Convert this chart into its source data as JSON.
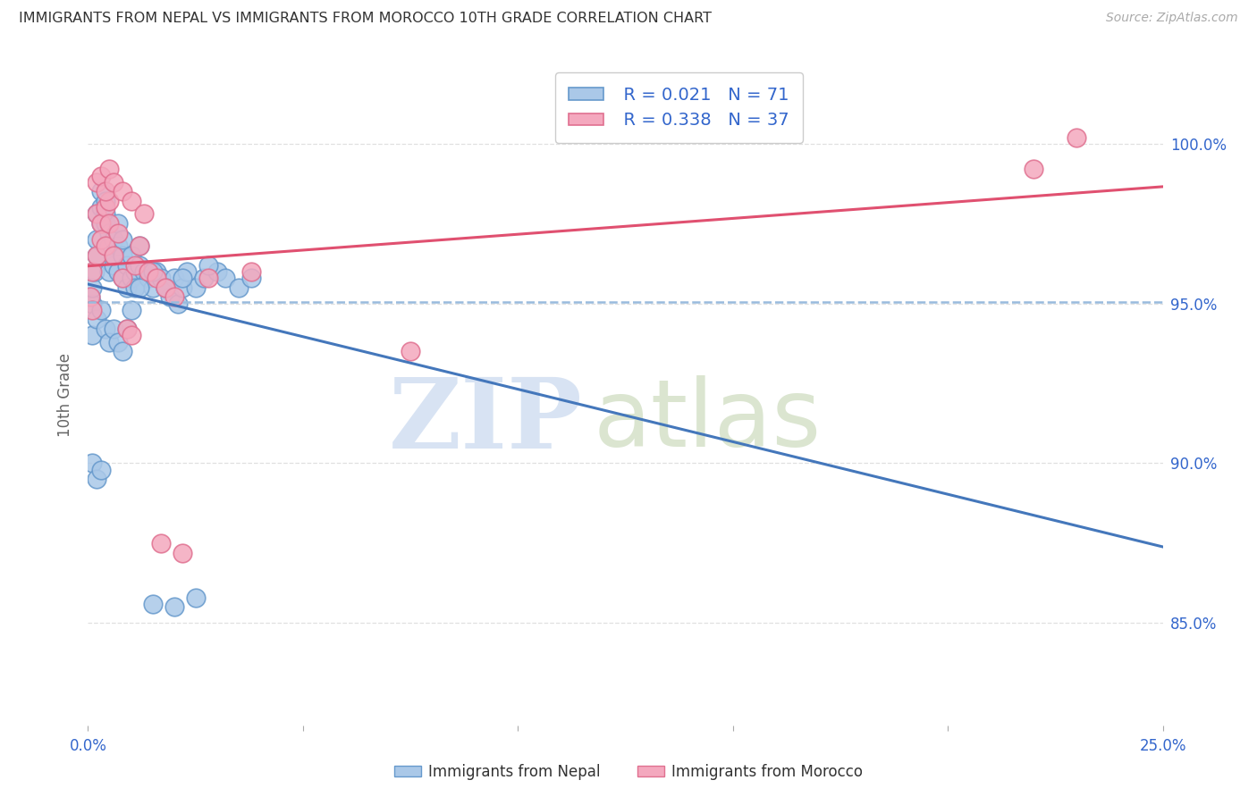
{
  "title": "IMMIGRANTS FROM NEPAL VS IMMIGRANTS FROM MOROCCO 10TH GRADE CORRELATION CHART",
  "source": "Source: ZipAtlas.com",
  "ylabel": "10th Grade",
  "x_min": 0.0,
  "x_max": 0.25,
  "y_min": 0.818,
  "y_max": 1.025,
  "x_ticks": [
    0.0,
    0.05,
    0.1,
    0.15,
    0.2,
    0.25
  ],
  "x_tick_labels": [
    "0.0%",
    "",
    "",
    "",
    "",
    "25.0%"
  ],
  "y_ticks": [
    0.85,
    0.9,
    0.95,
    1.0
  ],
  "y_tick_labels": [
    "85.0%",
    "90.0%",
    "95.0%",
    "100.0%"
  ],
  "nepal_color": "#aac8e8",
  "morocco_color": "#f4a8be",
  "nepal_edge_color": "#6699cc",
  "morocco_edge_color": "#e07090",
  "trend_nepal_color": "#4477bb",
  "trend_morocco_color": "#e05070",
  "dashed_line_color": "#99bbdd",
  "dashed_line_y": 0.9505,
  "legend_R_nepal": "R = 0.021",
  "legend_N_nepal": "N = 71",
  "legend_R_morocco": "R = 0.338",
  "legend_N_morocco": "N = 37",
  "legend_text_color": "#3366cc",
  "watermark_zip_color": "#c8d8ee",
  "watermark_atlas_color": "#c8d8b8",
  "nepal_x": [
    0.0005,
    0.001,
    0.001,
    0.0015,
    0.002,
    0.002,
    0.002,
    0.003,
    0.003,
    0.003,
    0.004,
    0.004,
    0.004,
    0.005,
    0.005,
    0.005,
    0.006,
    0.006,
    0.006,
    0.007,
    0.007,
    0.007,
    0.008,
    0.008,
    0.008,
    0.009,
    0.009,
    0.01,
    0.01,
    0.011,
    0.011,
    0.012,
    0.012,
    0.013,
    0.014,
    0.015,
    0.016,
    0.017,
    0.018,
    0.019,
    0.02,
    0.021,
    0.022,
    0.023,
    0.025,
    0.027,
    0.03,
    0.032,
    0.035,
    0.038,
    0.001,
    0.002,
    0.003,
    0.004,
    0.005,
    0.006,
    0.007,
    0.008,
    0.009,
    0.01,
    0.012,
    0.015,
    0.018,
    0.022,
    0.028,
    0.001,
    0.002,
    0.003,
    0.015,
    0.02,
    0.025
  ],
  "nepal_y": [
    0.952,
    0.95,
    0.955,
    0.96,
    0.965,
    0.97,
    0.978,
    0.975,
    0.98,
    0.985,
    0.978,
    0.982,
    0.975,
    0.968,
    0.96,
    0.972,
    0.962,
    0.97,
    0.965,
    0.96,
    0.968,
    0.975,
    0.958,
    0.965,
    0.97,
    0.955,
    0.962,
    0.958,
    0.965,
    0.96,
    0.955,
    0.962,
    0.968,
    0.96,
    0.958,
    0.955,
    0.96,
    0.958,
    0.955,
    0.952,
    0.958,
    0.95,
    0.955,
    0.96,
    0.955,
    0.958,
    0.96,
    0.958,
    0.955,
    0.958,
    0.94,
    0.945,
    0.948,
    0.942,
    0.938,
    0.942,
    0.938,
    0.935,
    0.942,
    0.948,
    0.955,
    0.96,
    0.955,
    0.958,
    0.962,
    0.9,
    0.895,
    0.898,
    0.856,
    0.855,
    0.858
  ],
  "morocco_x": [
    0.0005,
    0.001,
    0.001,
    0.002,
    0.002,
    0.003,
    0.003,
    0.004,
    0.004,
    0.005,
    0.005,
    0.006,
    0.007,
    0.008,
    0.009,
    0.01,
    0.011,
    0.012,
    0.014,
    0.016,
    0.018,
    0.02,
    0.002,
    0.003,
    0.004,
    0.005,
    0.006,
    0.008,
    0.01,
    0.013,
    0.017,
    0.022,
    0.028,
    0.038,
    0.075,
    0.22,
    0.23
  ],
  "morocco_y": [
    0.952,
    0.948,
    0.96,
    0.965,
    0.978,
    0.975,
    0.97,
    0.98,
    0.968,
    0.975,
    0.982,
    0.965,
    0.972,
    0.958,
    0.942,
    0.94,
    0.962,
    0.968,
    0.96,
    0.958,
    0.955,
    0.952,
    0.988,
    0.99,
    0.985,
    0.992,
    0.988,
    0.985,
    0.982,
    0.978,
    0.875,
    0.872,
    0.958,
    0.96,
    0.935,
    0.992,
    1.002
  ],
  "bottom_legend_nepal": "Immigrants from Nepal",
  "bottom_legend_morocco": "Immigrants from Morocco",
  "grid_color": "#e0e0e0",
  "plot_bg": "#ffffff",
  "fig_bg": "#ffffff"
}
